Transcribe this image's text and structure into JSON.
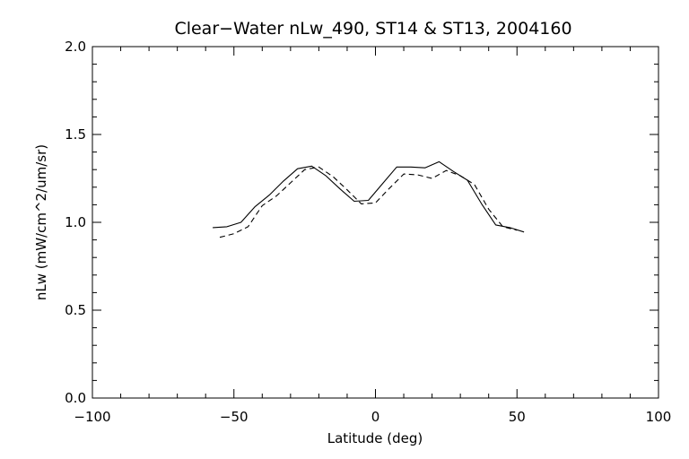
{
  "chart_data": {
    "type": "line",
    "title": "Clear−Water nLw_490, ST14 & ST13, 2004160",
    "xlabel": "Latitude (deg)",
    "ylabel": "nLw (mW/cm^2/um/sr)",
    "xlim": [
      -100,
      100
    ],
    "ylim": [
      0.0,
      2.0
    ],
    "x_ticks": [
      -100,
      -50,
      0,
      50,
      100
    ],
    "x_tick_labels": [
      "−100",
      "−50",
      "0",
      "50",
      "100"
    ],
    "y_ticks": [
      0.0,
      0.5,
      1.0,
      1.5,
      2.0
    ],
    "y_tick_labels": [
      "0.0",
      "0.5",
      "1.0",
      "1.5",
      "2.0"
    ],
    "grid": false,
    "series": [
      {
        "style": "solid",
        "color": "#000000",
        "x": [
          -57.5,
          -52.5,
          -47.5,
          -42.5,
          -37.5,
          -32.5,
          -27.5,
          -22.5,
          -17.5,
          -12.5,
          -7.5,
          -2.5,
          2.5,
          7.5,
          12.5,
          17.5,
          22.5,
          27.5,
          32.5,
          37.5,
          42.5,
          47.5,
          52.5
        ],
        "y": [
          0.97,
          0.975,
          1.0,
          1.09,
          1.155,
          1.235,
          1.305,
          1.32,
          1.265,
          1.19,
          1.12,
          1.125,
          1.22,
          1.315,
          1.315,
          1.31,
          1.345,
          1.29,
          1.24,
          1.105,
          0.985,
          0.97,
          0.945
        ]
      },
      {
        "style": "dashed",
        "color": "#000000",
        "x": [
          -55,
          -50,
          -45,
          -40,
          -35,
          -30,
          -25,
          -20,
          -15,
          -10,
          -5,
          0,
          5,
          10,
          15,
          20,
          25,
          30,
          35,
          40,
          45,
          50
        ],
        "y": [
          0.915,
          0.935,
          0.975,
          1.095,
          1.15,
          1.225,
          1.3,
          1.315,
          1.26,
          1.185,
          1.105,
          1.11,
          1.195,
          1.275,
          1.27,
          1.25,
          1.295,
          1.265,
          1.215,
          1.075,
          0.975,
          0.955
        ]
      }
    ]
  }
}
